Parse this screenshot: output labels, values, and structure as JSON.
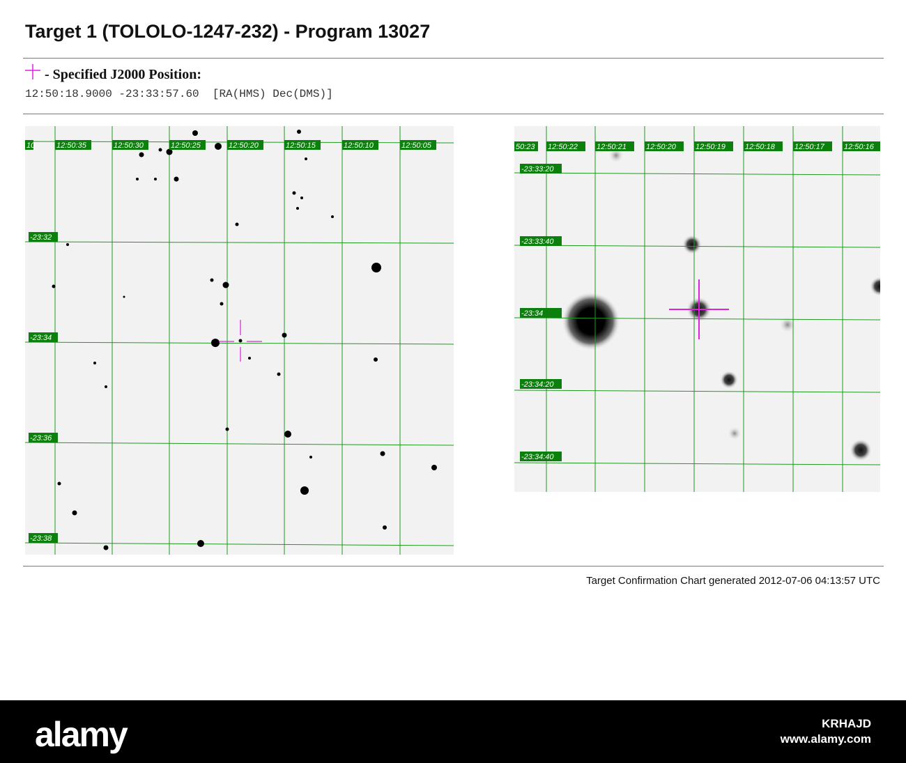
{
  "header": {
    "title": "Target 1 (TOLOLO-1247-232) - Program 13027"
  },
  "position": {
    "label": "- Specified J2000 Position:",
    "coords": "12:50:18.9000 -23:33:57.60  [RA(HMS) Dec(DMS)]",
    "marker_icon": "magenta-crosshair-icon"
  },
  "wide_chart": {
    "ra_labels": [
      "10",
      "12:50:35",
      "12:50:30",
      "12:50:25",
      "12:50:20",
      "12:50:15",
      "12:50:10",
      "12:50:05"
    ],
    "dec_labels": [
      "-23:32",
      "-23:34",
      "-23:36",
      "-23:38"
    ]
  },
  "zoom_chart": {
    "ra_labels": [
      "50:23",
      "12:50:22",
      "12:50:21",
      "12:50:20",
      "12:50:19",
      "12:50:18",
      "12:50:17",
      "12:50:16"
    ],
    "dec_labels": [
      "-23:33:20",
      "-23:33:40",
      "-23:34",
      "-23:34:20",
      "-23:34:40"
    ]
  },
  "footer": {
    "generated": "Target Confirmation Chart generated 2012-07-06 04:13:57 UTC"
  },
  "watermark": {
    "logo": "alamy",
    "image_id": "KRHAJD",
    "url": "www.alamy.com"
  },
  "colors": {
    "grid": "#1f9a1f",
    "label_bg": "#0c800c",
    "crosshair": "#e020e0"
  }
}
